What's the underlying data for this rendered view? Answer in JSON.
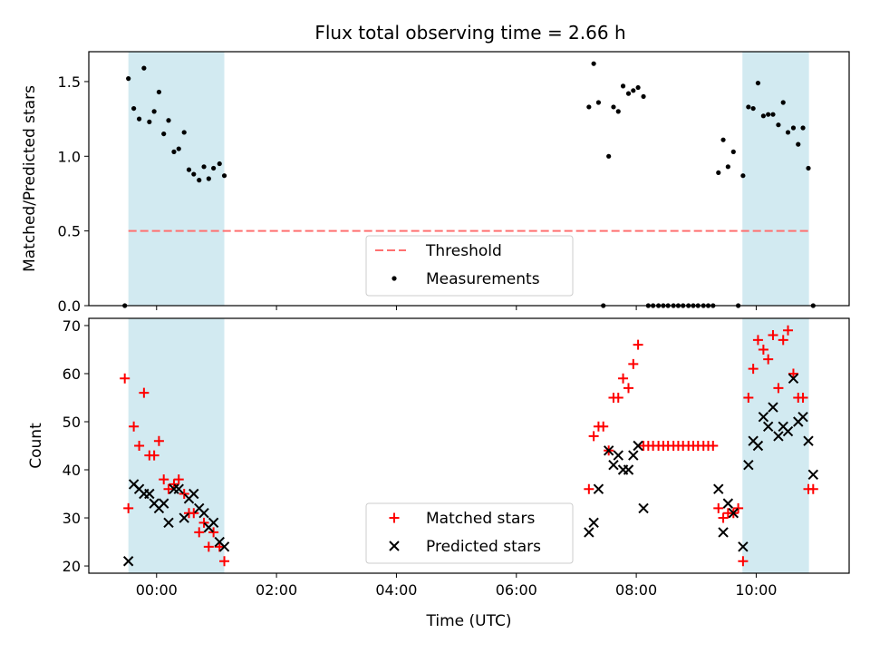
{
  "chart_data": {
    "title": "Flux total observing time = 2.66 h",
    "xlabel": "Time (UTC)",
    "xtick_labels": [
      "00:00",
      "02:00",
      "04:00",
      "06:00",
      "08:00",
      "10:00"
    ],
    "xlim_hours": [
      -1.13,
      11.55
    ],
    "shaded_intervals_hours": [
      [
        -0.47,
        1.13
      ],
      [
        9.77,
        10.88
      ]
    ],
    "shade_color": "#add8e6",
    "panels": [
      {
        "type": "scatter",
        "ylabel": "Matched/Predicted stars",
        "ylim": [
          0,
          1.7
        ],
        "yticks": [
          0.0,
          0.5,
          1.0,
          1.5
        ],
        "ytick_labels": [
          "0.0",
          "0.5",
          "1.0",
          "1.5"
        ],
        "threshold": {
          "name": "Threshold",
          "value": 0.5,
          "x_range": [
            -0.47,
            10.88
          ],
          "color": "#ff7070"
        },
        "legend": {
          "position": "lower-center",
          "entries": [
            "Threshold",
            "Measurements"
          ]
        },
        "series": [
          {
            "name": "Measurements",
            "color": "#000000",
            "marker": "dot",
            "points": [
              [
                -0.53,
                0.0
              ],
              [
                -0.47,
                1.52
              ],
              [
                -0.38,
                1.32
              ],
              [
                -0.29,
                1.25
              ],
              [
                -0.21,
                1.59
              ],
              [
                -0.12,
                1.23
              ],
              [
                -0.04,
                1.3
              ],
              [
                0.04,
                1.43
              ],
              [
                0.12,
                1.15
              ],
              [
                0.2,
                1.24
              ],
              [
                0.29,
                1.03
              ],
              [
                0.37,
                1.05
              ],
              [
                0.46,
                1.16
              ],
              [
                0.54,
                0.91
              ],
              [
                0.62,
                0.88
              ],
              [
                0.71,
                0.84
              ],
              [
                0.79,
                0.93
              ],
              [
                0.87,
                0.85
              ],
              [
                0.95,
                0.92
              ],
              [
                1.05,
                0.95
              ],
              [
                1.13,
                0.87
              ],
              [
                7.21,
                1.33
              ],
              [
                7.29,
                1.62
              ],
              [
                7.37,
                1.36
              ],
              [
                7.45,
                0.0
              ],
              [
                7.54,
                1.0
              ],
              [
                7.62,
                1.33
              ],
              [
                7.7,
                1.3
              ],
              [
                7.78,
                1.47
              ],
              [
                7.87,
                1.42
              ],
              [
                7.95,
                1.44
              ],
              [
                8.03,
                1.46
              ],
              [
                8.12,
                1.4
              ],
              [
                8.2,
                0.0
              ],
              [
                8.28,
                0.0
              ],
              [
                8.37,
                0.0
              ],
              [
                8.45,
                0.0
              ],
              [
                8.53,
                0.0
              ],
              [
                8.62,
                0.0
              ],
              [
                8.7,
                0.0
              ],
              [
                8.78,
                0.0
              ],
              [
                8.87,
                0.0
              ],
              [
                8.95,
                0.0
              ],
              [
                9.03,
                0.0
              ],
              [
                9.12,
                0.0
              ],
              [
                9.2,
                0.0
              ],
              [
                9.28,
                0.0
              ],
              [
                9.37,
                0.89
              ],
              [
                9.45,
                1.11
              ],
              [
                9.53,
                0.93
              ],
              [
                9.62,
                1.03
              ],
              [
                9.7,
                0.0
              ],
              [
                9.78,
                0.87
              ],
              [
                9.87,
                1.33
              ],
              [
                9.95,
                1.32
              ],
              [
                10.03,
                1.49
              ],
              [
                10.12,
                1.27
              ],
              [
                10.2,
                1.28
              ],
              [
                10.28,
                1.28
              ],
              [
                10.37,
                1.21
              ],
              [
                10.45,
                1.36
              ],
              [
                10.53,
                1.16
              ],
              [
                10.62,
                1.19
              ],
              [
                10.7,
                1.08
              ],
              [
                10.78,
                1.19
              ],
              [
                10.87,
                0.92
              ],
              [
                10.95,
                0.0
              ]
            ]
          }
        ]
      },
      {
        "type": "scatter",
        "ylabel": "Count",
        "ylim": [
          18.5,
          71.5
        ],
        "yticks": [
          20,
          30,
          40,
          50,
          60,
          70
        ],
        "ytick_labels": [
          "20",
          "30",
          "40",
          "50",
          "60",
          "70"
        ],
        "legend": {
          "position": "lower-center",
          "entries": [
            "Matched stars",
            "Predicted stars"
          ]
        },
        "series": [
          {
            "name": "Matched stars",
            "color": "#ff0000",
            "marker": "plus",
            "points": [
              [
                -0.53,
                59
              ],
              [
                -0.47,
                32
              ],
              [
                -0.38,
                49
              ],
              [
                -0.29,
                45
              ],
              [
                -0.21,
                56
              ],
              [
                -0.12,
                43
              ],
              [
                -0.04,
                43
              ],
              [
                0.04,
                46
              ],
              [
                0.12,
                38
              ],
              [
                0.2,
                36
              ],
              [
                0.29,
                37
              ],
              [
                0.37,
                38
              ],
              [
                0.46,
                35
              ],
              [
                0.54,
                31
              ],
              [
                0.62,
                31
              ],
              [
                0.71,
                27
              ],
              [
                0.79,
                29
              ],
              [
                0.87,
                24
              ],
              [
                0.95,
                27
              ],
              [
                1.05,
                24
              ],
              [
                1.13,
                21
              ],
              [
                7.21,
                36
              ],
              [
                7.29,
                47
              ],
              [
                7.37,
                49
              ],
              [
                7.45,
                49
              ],
              [
                7.54,
                44
              ],
              [
                7.62,
                55
              ],
              [
                7.7,
                55
              ],
              [
                7.78,
                59
              ],
              [
                7.87,
                57
              ],
              [
                7.95,
                62
              ],
              [
                8.03,
                66
              ],
              [
                8.12,
                45
              ],
              [
                8.2,
                45
              ],
              [
                8.28,
                45
              ],
              [
                8.37,
                45
              ],
              [
                8.45,
                45
              ],
              [
                8.53,
                45
              ],
              [
                8.62,
                45
              ],
              [
                8.7,
                45
              ],
              [
                8.78,
                45
              ],
              [
                8.87,
                45
              ],
              [
                8.95,
                45
              ],
              [
                9.03,
                45
              ],
              [
                9.12,
                45
              ],
              [
                9.2,
                45
              ],
              [
                9.28,
                45
              ],
              [
                9.37,
                32
              ],
              [
                9.45,
                30
              ],
              [
                9.53,
                31
              ],
              [
                9.62,
                31
              ],
              [
                9.7,
                32
              ],
              [
                9.78,
                21
              ],
              [
                9.87,
                55
              ],
              [
                9.95,
                61
              ],
              [
                10.03,
                67
              ],
              [
                10.12,
                65
              ],
              [
                10.2,
                63
              ],
              [
                10.28,
                68
              ],
              [
                10.37,
                57
              ],
              [
                10.45,
                67
              ],
              [
                10.53,
                69
              ],
              [
                10.62,
                60
              ],
              [
                10.7,
                55
              ],
              [
                10.78,
                55
              ],
              [
                10.87,
                36
              ],
              [
                10.95,
                36
              ]
            ]
          },
          {
            "name": "Predicted stars",
            "color": "#000000",
            "marker": "x",
            "points": [
              [
                -0.47,
                21
              ],
              [
                -0.38,
                37
              ],
              [
                -0.29,
                36
              ],
              [
                -0.21,
                35
              ],
              [
                -0.12,
                35
              ],
              [
                -0.04,
                33
              ],
              [
                0.04,
                32
              ],
              [
                0.12,
                33
              ],
              [
                0.2,
                29
              ],
              [
                0.29,
                36
              ],
              [
                0.37,
                36
              ],
              [
                0.46,
                30
              ],
              [
                0.54,
                34
              ],
              [
                0.62,
                35
              ],
              [
                0.71,
                32
              ],
              [
                0.79,
                31
              ],
              [
                0.87,
                28
              ],
              [
                0.95,
                29
              ],
              [
                1.05,
                25
              ],
              [
                1.13,
                24
              ],
              [
                7.21,
                27
              ],
              [
                7.29,
                29
              ],
              [
                7.37,
                36
              ],
              [
                7.54,
                44
              ],
              [
                7.62,
                41
              ],
              [
                7.7,
                43
              ],
              [
                7.78,
                40
              ],
              [
                7.87,
                40
              ],
              [
                7.95,
                43
              ],
              [
                8.03,
                45
              ],
              [
                8.12,
                32
              ],
              [
                9.37,
                36
              ],
              [
                9.45,
                27
              ],
              [
                9.53,
                33
              ],
              [
                9.62,
                31
              ],
              [
                9.78,
                24
              ],
              [
                9.87,
                41
              ],
              [
                9.95,
                46
              ],
              [
                10.03,
                45
              ],
              [
                10.12,
                51
              ],
              [
                10.2,
                49
              ],
              [
                10.28,
                53
              ],
              [
                10.37,
                47
              ],
              [
                10.45,
                49
              ],
              [
                10.53,
                48
              ],
              [
                10.62,
                59
              ],
              [
                10.7,
                50
              ],
              [
                10.78,
                51
              ],
              [
                10.87,
                46
              ],
              [
                10.95,
                39
              ]
            ]
          }
        ]
      }
    ]
  }
}
